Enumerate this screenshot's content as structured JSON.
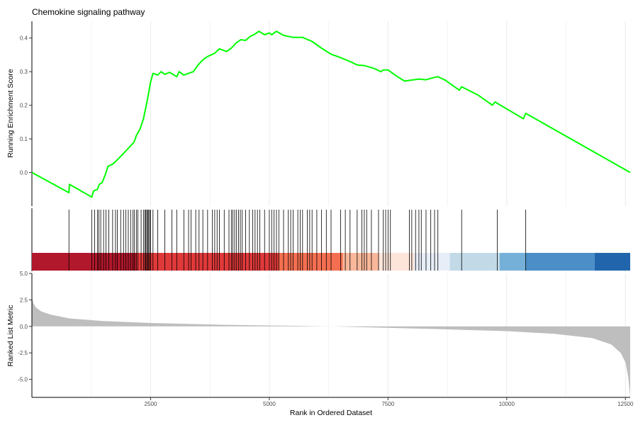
{
  "chart_data": {
    "type": "line",
    "title": "Chemokine signaling pathway",
    "xlabel": "Rank in Ordered Dataset",
    "x_ticks": [
      2500,
      5000,
      7500,
      10000,
      12500
    ],
    "xlim": [
      0,
      12600
    ],
    "colors": {
      "curve": "#00FF00",
      "hits": "#000000",
      "metric": "#BEBEBE",
      "grid": "#EBEBEB"
    },
    "running_score": {
      "ylabel": "Running Enrichment Score",
      "y_ticks": [
        0.0,
        0.1,
        0.2,
        0.3,
        0.4
      ],
      "y_tick_labels": [
        "0.0",
        "0.1",
        "0.2",
        "0.3",
        "0.4"
      ],
      "ylim": [
        -0.1,
        0.45
      ],
      "points": [
        [
          0,
          0.0
        ],
        [
          780,
          -0.06
        ],
        [
          790,
          -0.035
        ],
        [
          1260,
          -0.073
        ],
        [
          1300,
          -0.055
        ],
        [
          1380,
          -0.05
        ],
        [
          1420,
          -0.035
        ],
        [
          1480,
          -0.03
        ],
        [
          1550,
          -0.005
        ],
        [
          1600,
          0.018
        ],
        [
          1700,
          0.025
        ],
        [
          1780,
          0.035
        ],
        [
          1850,
          0.045
        ],
        [
          1950,
          0.06
        ],
        [
          2050,
          0.075
        ],
        [
          2150,
          0.09
        ],
        [
          2200,
          0.11
        ],
        [
          2280,
          0.13
        ],
        [
          2350,
          0.16
        ],
        [
          2410,
          0.2
        ],
        [
          2450,
          0.23
        ],
        [
          2500,
          0.27
        ],
        [
          2550,
          0.295
        ],
        [
          2650,
          0.29
        ],
        [
          2720,
          0.3
        ],
        [
          2800,
          0.292
        ],
        [
          2900,
          0.298
        ],
        [
          3050,
          0.285
        ],
        [
          3100,
          0.3
        ],
        [
          3200,
          0.29
        ],
        [
          3300,
          0.295
        ],
        [
          3400,
          0.3
        ],
        [
          3500,
          0.32
        ],
        [
          3600,
          0.335
        ],
        [
          3700,
          0.345
        ],
        [
          3850,
          0.355
        ],
        [
          3950,
          0.368
        ],
        [
          4100,
          0.36
        ],
        [
          4200,
          0.37
        ],
        [
          4300,
          0.385
        ],
        [
          4400,
          0.395
        ],
        [
          4500,
          0.393
        ],
        [
          4600,
          0.405
        ],
        [
          4700,
          0.412
        ],
        [
          4780,
          0.42
        ],
        [
          4900,
          0.41
        ],
        [
          5000,
          0.415
        ],
        [
          5050,
          0.41
        ],
        [
          5150,
          0.42
        ],
        [
          5300,
          0.408
        ],
        [
          5500,
          0.402
        ],
        [
          5700,
          0.402
        ],
        [
          5900,
          0.39
        ],
        [
          6100,
          0.37
        ],
        [
          6300,
          0.352
        ],
        [
          6500,
          0.342
        ],
        [
          6700,
          0.33
        ],
        [
          6850,
          0.32
        ],
        [
          7000,
          0.318
        ],
        [
          7200,
          0.31
        ],
        [
          7350,
          0.3
        ],
        [
          7400,
          0.305
        ],
        [
          7500,
          0.305
        ],
        [
          7700,
          0.285
        ],
        [
          7850,
          0.272
        ],
        [
          8000,
          0.275
        ],
        [
          8150,
          0.278
        ],
        [
          8300,
          0.276
        ],
        [
          8450,
          0.282
        ],
        [
          8550,
          0.285
        ],
        [
          8700,
          0.275
        ],
        [
          9000,
          0.245
        ],
        [
          9050,
          0.255
        ],
        [
          9400,
          0.23
        ],
        [
          9700,
          0.2
        ],
        [
          9750,
          0.21
        ],
        [
          10350,
          0.16
        ],
        [
          10400,
          0.176
        ],
        [
          12600,
          0.0
        ]
      ]
    },
    "hits": [
      780,
      1260,
      1320,
      1380,
      1410,
      1450,
      1510,
      1560,
      1620,
      1700,
      1760,
      1800,
      1870,
      1930,
      1980,
      2030,
      2080,
      2130,
      2160,
      2200,
      2230,
      2300,
      2350,
      2380,
      2400,
      2420,
      2440,
      2460,
      2480,
      2500,
      2550,
      2650,
      2800,
      2950,
      3050,
      3200,
      3300,
      3350,
      3450,
      3520,
      3600,
      3700,
      3800,
      3850,
      3900,
      3950,
      4050,
      4150,
      4200,
      4230,
      4270,
      4310,
      4350,
      4390,
      4430,
      4500,
      4580,
      4650,
      4700,
      4750,
      4800,
      4900,
      5000,
      5050,
      5100,
      5150,
      5200,
      5300,
      5400,
      5450,
      5500,
      5600,
      5650,
      5700,
      5800,
      5850,
      5900,
      6000,
      6100,
      6200,
      6300,
      6500,
      6600,
      6700,
      6850,
      6950,
      7000,
      7050,
      7150,
      7300,
      7400,
      7450,
      7500,
      7550,
      7950,
      8000,
      8080,
      8150,
      8200,
      8300,
      8400,
      8480,
      8550,
      9050,
      9800,
      10400
    ],
    "color_bands": [
      {
        "from": 0,
        "to": 2200,
        "color": "#B2182B"
      },
      {
        "from": 2200,
        "to": 5200,
        "color": "#E0393A"
      },
      {
        "from": 5200,
        "to": 6550,
        "color": "#F46F51"
      },
      {
        "from": 6550,
        "to": 7300,
        "color": "#F9B89B"
      },
      {
        "from": 7300,
        "to": 8050,
        "color": "#FDE5DA"
      },
      {
        "from": 8050,
        "to": 8800,
        "color": "#E8EEF8"
      },
      {
        "from": 8800,
        "to": 9850,
        "color": "#C2DAE8"
      },
      {
        "from": 9850,
        "to": 10400,
        "color": "#75B0D8"
      },
      {
        "from": 10400,
        "to": 11850,
        "color": "#4B8EC8"
      },
      {
        "from": 11850,
        "to": 12600,
        "color": "#2166AC"
      }
    ],
    "ranked_metric": {
      "ylabel": "Ranked List Metric",
      "y_ticks": [
        5.0,
        2.5,
        0.0,
        -2.5,
        -5.0
      ],
      "y_tick_labels": [
        "5.0",
        "2.5",
        "0.0",
        "-2.5",
        "-5.0"
      ],
      "ylim": [
        -6.7,
        5.0
      ],
      "points": [
        [
          0,
          2.8
        ],
        [
          30,
          2.2
        ],
        [
          80,
          1.8
        ],
        [
          200,
          1.4
        ],
        [
          400,
          1.1
        ],
        [
          800,
          0.75
        ],
        [
          1500,
          0.5
        ],
        [
          2500,
          0.32
        ],
        [
          4000,
          0.15
        ],
        [
          5500,
          0.06
        ],
        [
          6300,
          0.0
        ],
        [
          7000,
          -0.08
        ],
        [
          8500,
          -0.25
        ],
        [
          10000,
          -0.45
        ],
        [
          11000,
          -0.7
        ],
        [
          11800,
          -1.1
        ],
        [
          12200,
          -1.7
        ],
        [
          12400,
          -2.5
        ],
        [
          12500,
          -3.4
        ],
        [
          12560,
          -4.8
        ],
        [
          12600,
          -6.7
        ]
      ]
    }
  }
}
